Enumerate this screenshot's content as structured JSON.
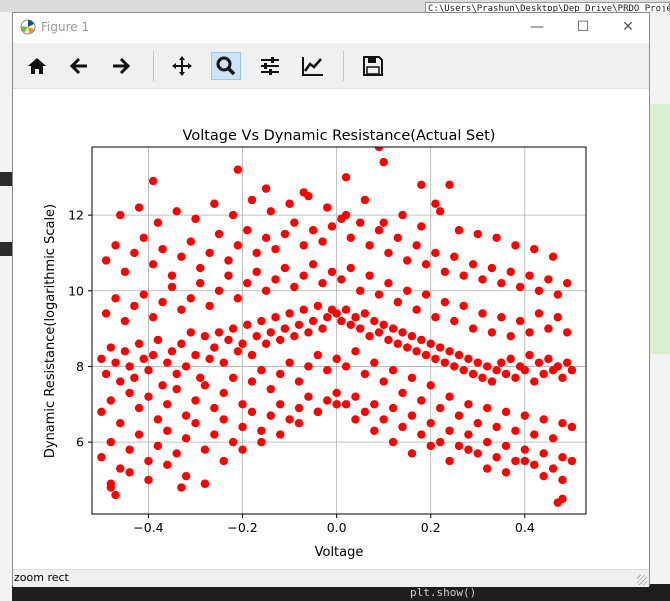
{
  "background": {
    "path_text": "C:\\Users\\Prashun\\Desktop\\Dep Drive\\PRDO Project",
    "bottom_code": "plt.show()"
  },
  "window": {
    "title": "Figure 1",
    "controls": {
      "minimize": "—",
      "maximize": "☐",
      "close": "✕"
    }
  },
  "toolbar": {
    "buttons": [
      {
        "name": "home",
        "icon": "home-icon",
        "active": false
      },
      {
        "name": "back",
        "icon": "arrow-left-icon",
        "active": false
      },
      {
        "name": "forward",
        "icon": "arrow-right-icon",
        "active": false
      },
      {
        "name": "pan",
        "icon": "move-icon",
        "active": false
      },
      {
        "name": "zoom",
        "icon": "magnifier-icon",
        "active": true
      },
      {
        "name": "configure-subplots",
        "icon": "sliders-icon",
        "active": false
      },
      {
        "name": "edit-axis",
        "icon": "line-chart-icon",
        "active": false
      },
      {
        "name": "save",
        "icon": "floppy-disk-icon",
        "active": false
      }
    ]
  },
  "status": {
    "message": "zoom rect"
  },
  "chart_data": {
    "type": "scatter",
    "title": "Voltage Vs Dynamic Resistance(Actual Set)",
    "xlabel": "Voltage",
    "ylabel": "Dynamic Resistance(logarithmic Scale)",
    "xlim": [
      -0.52,
      0.53
    ],
    "ylim": [
      4.1,
      13.8
    ],
    "xticks": [
      -0.4,
      -0.2,
      0.0,
      0.2,
      0.4
    ],
    "xtick_labels": [
      "−0.4",
      "−0.2",
      "0.0",
      "0.2",
      "0.4"
    ],
    "yticks": [
      6,
      8,
      10,
      12
    ],
    "ytick_labels": [
      "6",
      "8",
      "10",
      "12"
    ],
    "grid": true,
    "marker_color": "#ff0000",
    "series": [
      {
        "x": [
          -0.5,
          -0.49,
          -0.48,
          -0.47,
          -0.46,
          -0.45,
          -0.44,
          -0.43,
          -0.42,
          -0.41,
          -0.4,
          -0.39,
          -0.38,
          -0.37,
          -0.36,
          -0.35,
          -0.34,
          -0.33,
          -0.32,
          -0.31,
          -0.3,
          -0.29,
          -0.28,
          -0.27,
          -0.26,
          -0.25,
          -0.24,
          -0.23,
          -0.22,
          -0.21,
          -0.2,
          -0.19,
          -0.18,
          -0.17,
          -0.16,
          -0.15,
          -0.14,
          -0.13,
          -0.12,
          -0.11,
          -0.1,
          -0.09,
          -0.08,
          -0.07,
          -0.06,
          -0.05,
          -0.04,
          -0.03,
          -0.02,
          -0.01,
          0.0,
          0.01,
          0.02,
          0.03,
          0.04,
          0.05,
          0.06,
          0.07,
          0.08,
          0.09,
          0.1,
          0.11,
          0.12,
          0.13,
          0.14,
          0.15,
          0.16,
          0.17,
          0.18,
          0.19,
          0.2,
          0.21,
          0.22,
          0.23,
          0.24,
          0.25,
          0.26,
          0.27,
          0.28,
          0.29,
          0.3,
          0.31,
          0.32,
          0.33,
          0.34,
          0.35,
          0.36,
          0.37,
          0.38,
          0.39,
          0.4,
          0.41,
          0.42,
          0.43,
          0.44,
          0.45,
          0.46,
          0.47,
          0.48,
          0.49,
          0.5,
          -0.5,
          -0.48,
          -0.46,
          -0.44,
          -0.42,
          -0.4,
          -0.38,
          -0.36,
          -0.34,
          -0.32,
          -0.3,
          -0.28,
          -0.26,
          -0.24,
          -0.22,
          -0.2,
          -0.18,
          -0.16,
          -0.14,
          -0.12,
          -0.1,
          -0.08,
          -0.06,
          -0.04,
          -0.02,
          0.0,
          0.02,
          0.04,
          0.06,
          0.08,
          0.1,
          0.12,
          0.14,
          0.16,
          0.18,
          0.2,
          0.22,
          0.24,
          0.26,
          0.28,
          0.3,
          0.32,
          0.34,
          0.36,
          0.38,
          0.4,
          0.42,
          0.44,
          0.46,
          0.48,
          0.5,
          -0.49,
          -0.47,
          -0.45,
          -0.43,
          -0.41,
          -0.39,
          -0.37,
          -0.35,
          -0.33,
          -0.31,
          -0.29,
          -0.27,
          -0.25,
          -0.23,
          -0.21,
          -0.19,
          -0.17,
          -0.15,
          -0.13,
          -0.11,
          -0.09,
          -0.07,
          -0.05,
          -0.03,
          -0.01,
          0.01,
          0.03,
          0.05,
          0.07,
          0.09,
          0.11,
          0.13,
          0.15,
          0.17,
          0.19,
          0.21,
          0.23,
          0.25,
          0.27,
          0.29,
          0.31,
          0.33,
          0.35,
          0.37,
          0.39,
          0.41,
          0.43,
          0.45,
          0.47,
          0.49,
          -0.5,
          -0.48,
          -0.46,
          -0.44,
          -0.42,
          -0.4,
          -0.38,
          -0.36,
          -0.34,
          -0.32,
          -0.3,
          -0.28,
          -0.26,
          -0.24,
          -0.22,
          -0.2,
          -0.18,
          -0.16,
          -0.14,
          -0.12,
          -0.1,
          -0.08,
          -0.06,
          -0.04,
          -0.02,
          0.0,
          0.02,
          0.04,
          0.06,
          0.08,
          0.1,
          0.12,
          0.14,
          0.16,
          0.18,
          0.2,
          0.22,
          0.24,
          0.26,
          0.28,
          0.3,
          0.32,
          0.34,
          0.36,
          0.38,
          0.4,
          0.42,
          0.44,
          0.46,
          0.48,
          0.5,
          -0.49,
          -0.47,
          -0.45,
          -0.43,
          -0.41,
          -0.39,
          -0.37,
          -0.35,
          -0.33,
          -0.31,
          -0.29,
          -0.27,
          -0.25,
          -0.23,
          -0.21,
          -0.19,
          -0.17,
          -0.15,
          -0.13,
          -0.11,
          -0.09,
          -0.07,
          -0.05,
          -0.03,
          -0.01,
          0.01,
          0.03,
          0.05,
          0.07,
          0.09,
          0.11,
          0.13,
          0.15,
          0.17,
          0.19,
          0.21,
          0.23,
          0.25,
          0.27,
          0.29,
          0.31,
          0.33,
          0.35,
          0.37,
          0.39,
          0.41,
          0.43,
          0.45,
          0.47,
          0.49,
          -0.48,
          -0.44,
          -0.4,
          -0.36,
          -0.32,
          -0.28,
          -0.24,
          -0.2,
          -0.16,
          -0.12,
          -0.08,
          -0.04,
          0.0,
          0.04,
          0.08,
          0.12,
          0.16,
          0.2,
          0.24,
          0.28,
          0.32,
          0.36,
          0.4,
          0.44,
          0.48,
          -0.46,
          -0.42,
          -0.38,
          -0.34,
          -0.3,
          -0.26,
          -0.22,
          -0.18,
          -0.14,
          -0.1,
          -0.06,
          -0.02,
          0.02,
          0.06,
          0.1,
          0.14,
          0.18,
          0.22,
          0.26,
          0.3,
          0.34,
          0.38,
          0.42,
          0.46,
          -0.39,
          -0.21,
          -0.15,
          -0.07,
          0.02,
          0.09,
          0.1,
          0.18,
          0.21,
          0.24,
          -0.48,
          0.47,
          0.48,
          -0.47,
          -0.33,
          -0.28
        ],
        "y": [
          8.2,
          7.8,
          8.5,
          8.1,
          7.6,
          8.4,
          8.0,
          7.7,
          8.6,
          8.2,
          7.9,
          8.3,
          8.7,
          7.5,
          8.1,
          8.4,
          7.8,
          8.6,
          8.0,
          8.9,
          8.3,
          7.7,
          8.8,
          8.2,
          8.5,
          8.9,
          8.1,
          8.7,
          9.0,
          8.4,
          8.6,
          9.1,
          8.3,
          8.8,
          9.2,
          8.6,
          8.9,
          9.3,
          8.7,
          9.0,
          9.4,
          8.8,
          9.1,
          9.5,
          8.9,
          9.2,
          9.6,
          9.0,
          9.3,
          9.5,
          9.4,
          9.2,
          9.5,
          9.1,
          9.3,
          9.0,
          9.4,
          8.8,
          9.2,
          8.9,
          9.1,
          8.7,
          9.0,
          8.6,
          8.9,
          8.5,
          8.8,
          8.4,
          8.7,
          8.3,
          8.6,
          8.2,
          8.5,
          8.1,
          8.4,
          8.0,
          8.3,
          7.9,
          8.2,
          7.8,
          8.1,
          7.7,
          8.0,
          7.6,
          7.9,
          8.1,
          7.8,
          8.2,
          7.7,
          8.0,
          7.9,
          8.3,
          7.6,
          8.1,
          7.8,
          8.2,
          7.9,
          8.0,
          7.7,
          8.1,
          7.9,
          6.8,
          7.1,
          6.5,
          7.3,
          6.9,
          7.2,
          6.6,
          7.0,
          7.4,
          6.7,
          7.1,
          7.5,
          6.9,
          7.3,
          7.7,
          7.0,
          7.6,
          7.9,
          7.4,
          7.8,
          8.1,
          7.6,
          8.0,
          8.3,
          7.9,
          8.2,
          8.0,
          8.4,
          7.8,
          8.1,
          7.6,
          7.9,
          7.3,
          7.7,
          7.1,
          7.5,
          6.9,
          7.2,
          6.7,
          7.0,
          6.5,
          6.9,
          6.4,
          6.8,
          6.3,
          6.7,
          6.2,
          6.6,
          6.1,
          6.5,
          6.4,
          9.4,
          9.8,
          9.2,
          9.6,
          9.9,
          9.3,
          9.7,
          10.1,
          9.5,
          9.8,
          10.2,
          9.6,
          10.0,
          10.4,
          9.8,
          10.2,
          10.5,
          10.0,
          10.3,
          10.6,
          10.1,
          10.4,
          10.7,
          10.2,
          10.5,
          10.3,
          10.6,
          10.0,
          10.4,
          9.9,
          10.2,
          9.7,
          10.0,
          9.5,
          9.9,
          9.3,
          9.7,
          9.2,
          9.6,
          9.0,
          9.4,
          8.9,
          9.3,
          8.8,
          9.2,
          8.9,
          9.4,
          9.0,
          9.3,
          8.9,
          5.6,
          6.0,
          5.3,
          5.8,
          6.2,
          5.5,
          5.9,
          6.3,
          5.7,
          6.1,
          6.5,
          5.8,
          6.2,
          6.6,
          6.0,
          6.4,
          6.8,
          6.3,
          6.7,
          7.0,
          6.6,
          6.9,
          7.2,
          6.8,
          7.1,
          7.3,
          7.0,
          7.2,
          6.8,
          7.0,
          6.6,
          6.9,
          6.4,
          6.7,
          6.2,
          6.5,
          6.0,
          6.3,
          5.9,
          6.2,
          5.7,
          6.0,
          5.6,
          5.9,
          5.5,
          5.8,
          5.4,
          5.7,
          5.3,
          5.6,
          5.5,
          10.8,
          11.2,
          10.5,
          11.0,
          11.4,
          10.7,
          11.1,
          10.4,
          10.9,
          11.3,
          10.6,
          11.0,
          11.5,
          10.8,
          11.2,
          11.6,
          11.0,
          11.4,
          11.1,
          11.5,
          11.8,
          11.2,
          11.6,
          11.3,
          11.7,
          11.9,
          11.4,
          11.8,
          11.2,
          11.6,
          11.0,
          11.4,
          10.8,
          11.2,
          10.7,
          11.0,
          10.5,
          10.9,
          10.4,
          10.7,
          10.3,
          10.6,
          10.2,
          10.5,
          10.1,
          10.4,
          10.0,
          10.3,
          9.9,
          10.2,
          4.9,
          5.2,
          5.0,
          5.4,
          5.1,
          4.9,
          5.5,
          5.8,
          6.0,
          6.2,
          6.5,
          6.8,
          7.0,
          6.6,
          6.3,
          6.0,
          5.7,
          5.9,
          5.5,
          5.8,
          5.3,
          5.2,
          5.5,
          5.1,
          5.0,
          12.0,
          12.2,
          11.8,
          12.1,
          11.9,
          12.3,
          12.0,
          12.4,
          12.1,
          12.3,
          12.5,
          12.2,
          12.0,
          12.4,
          11.8,
          12.0,
          11.7,
          12.1,
          11.6,
          11.5,
          11.4,
          11.2,
          11.1,
          10.9,
          12.9,
          13.2,
          12.7,
          12.6,
          13.0,
          13.8,
          13.4,
          12.8,
          12.3,
          12.8,
          4.8,
          4.4,
          4.5,
          4.6,
          4.8,
          4.9
        ]
      }
    ]
  }
}
